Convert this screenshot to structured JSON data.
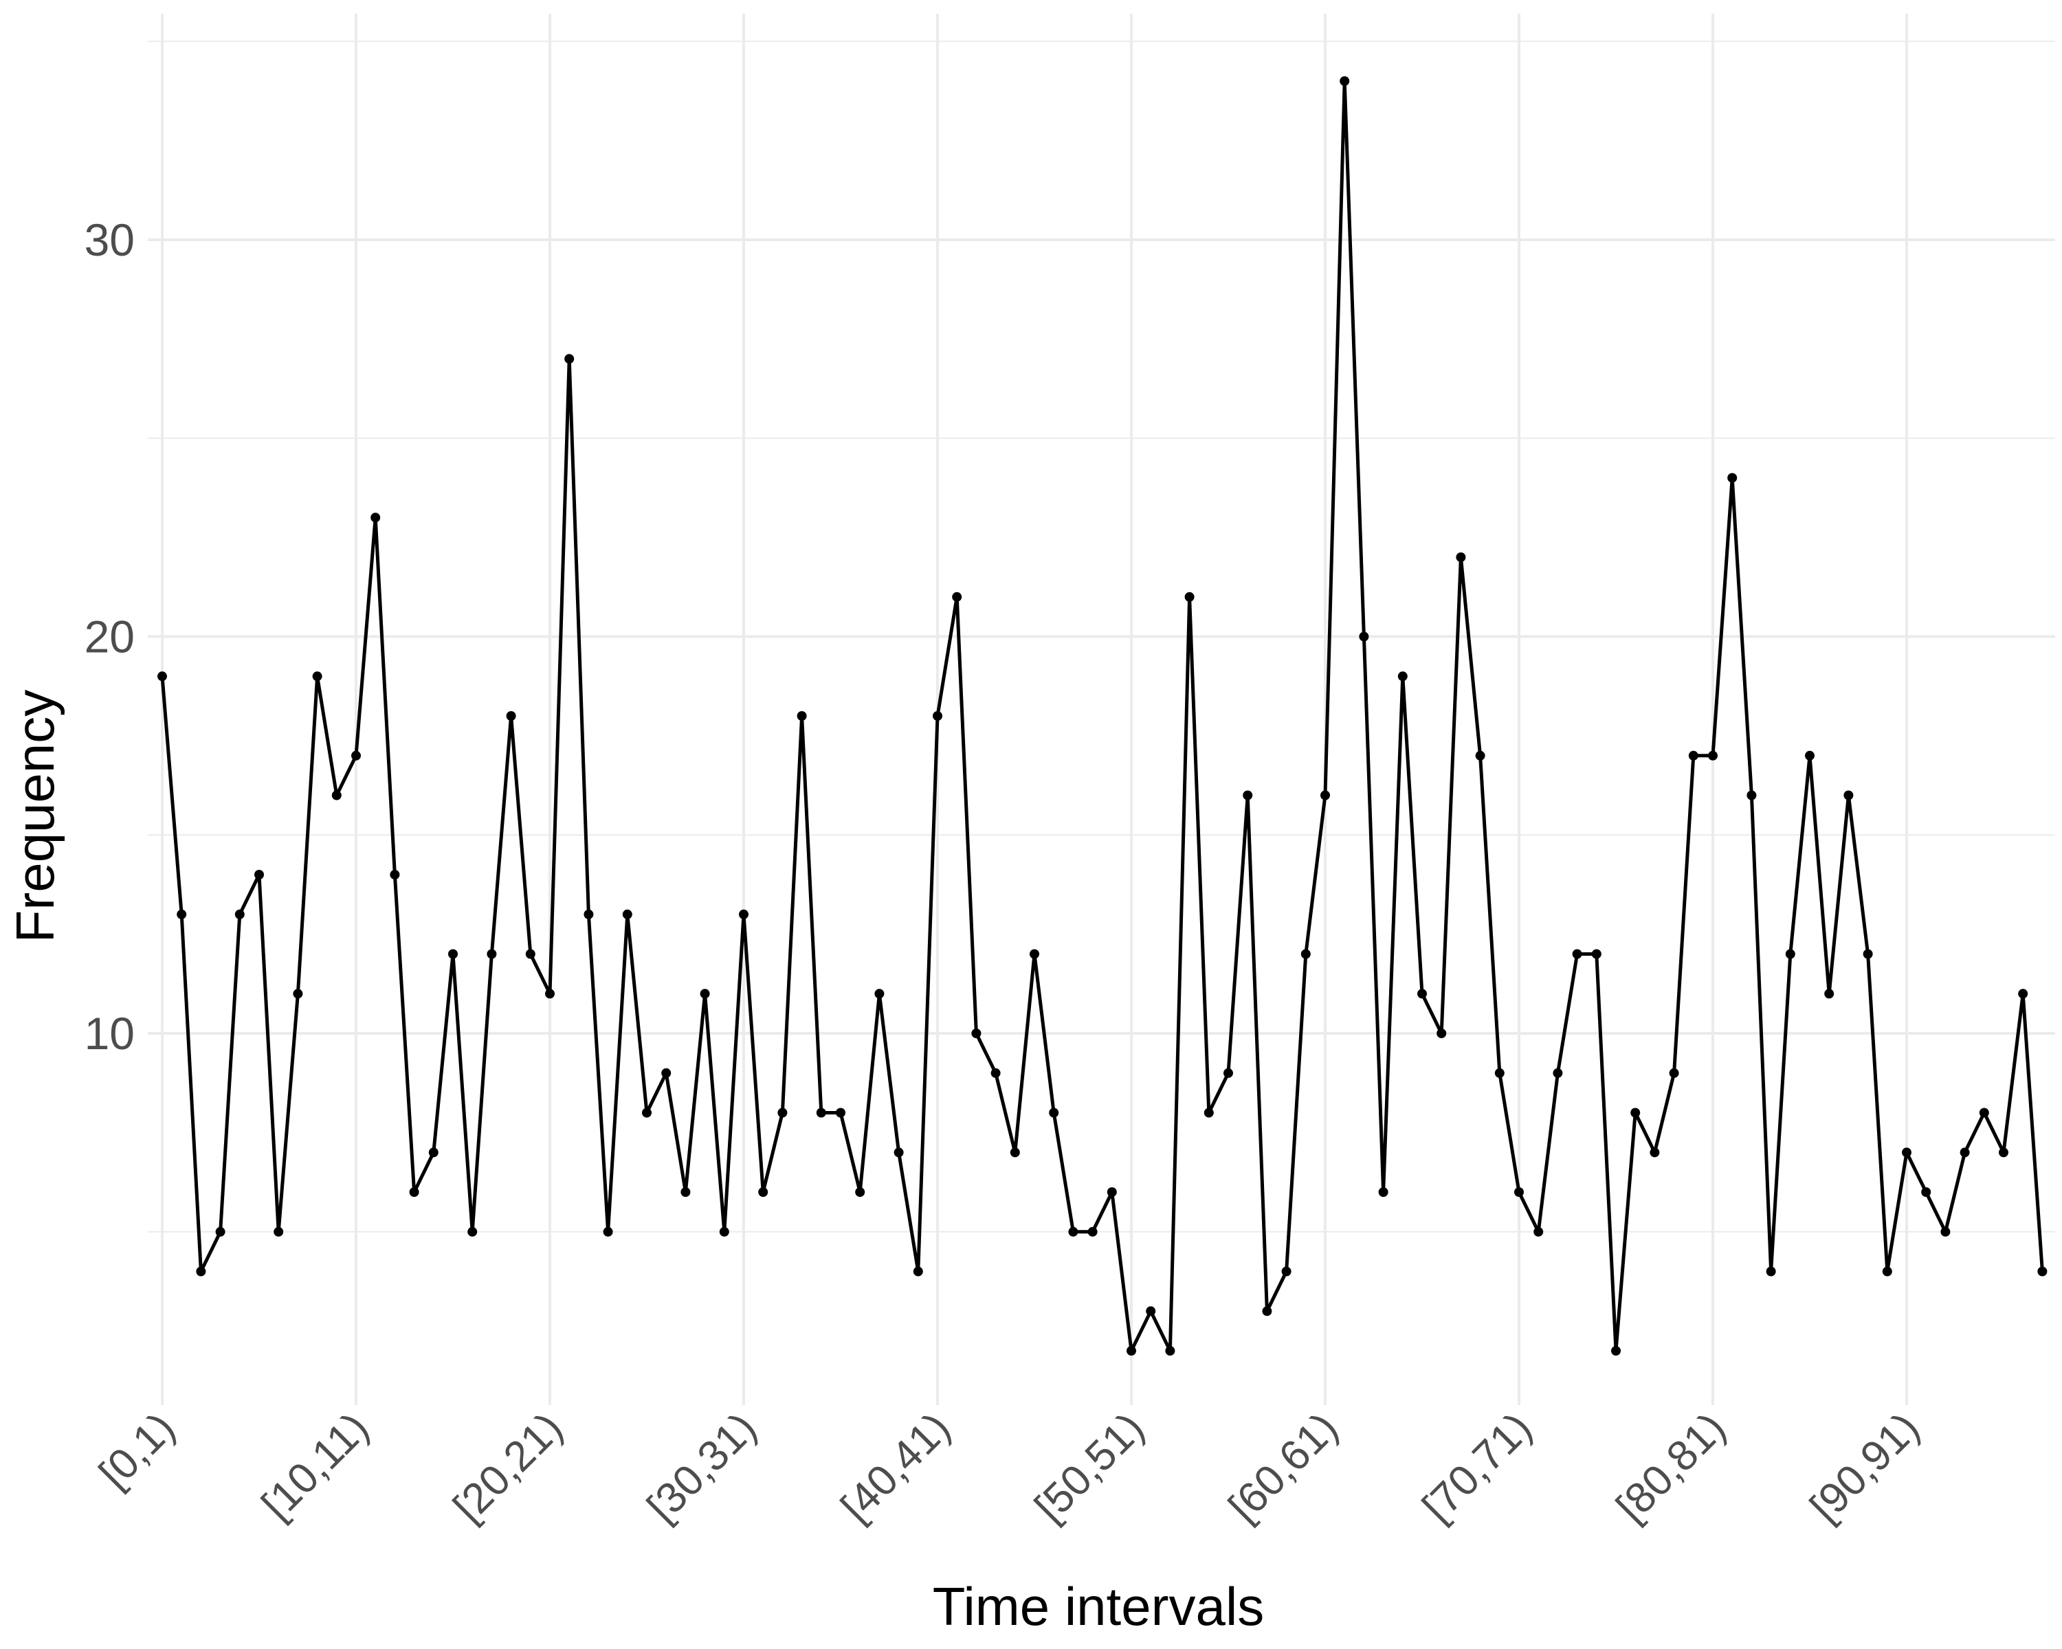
{
  "chart_data": {
    "type": "line",
    "xlabel": "Time intervals",
    "ylabel": "Frequency",
    "y_ticks": [
      10,
      20,
      30
    ],
    "ylim": [
      1,
      34
    ],
    "x_tick_labels": [
      "[0,1)",
      "[10,11)",
      "[20,21)",
      "[30,31)",
      "[40,41)",
      "[50,51)",
      "[60,61)",
      "[70,71)",
      "[80,81)",
      "[90,91)"
    ],
    "x_tick_indices": [
      0,
      10,
      20,
      30,
      40,
      50,
      60,
      70,
      80,
      90
    ],
    "grid": true,
    "series": [
      {
        "values": [
          19,
          13,
          4,
          5,
          13,
          14,
          5,
          11,
          19,
          16,
          17,
          23,
          14,
          6,
          7,
          12,
          5,
          12,
          18,
          12,
          11,
          27,
          13,
          5,
          13,
          8,
          9,
          6,
          11,
          5,
          13,
          6,
          8,
          18,
          8,
          8,
          6,
          11,
          7,
          4,
          18,
          21,
          10,
          9,
          7,
          12,
          8,
          5,
          5,
          6,
          2,
          3,
          2,
          21,
          8,
          9,
          16,
          3,
          4,
          12,
          16,
          34,
          20,
          6,
          19,
          11,
          10,
          22,
          17,
          9,
          6,
          5,
          9,
          12,
          12,
          2,
          8,
          7,
          9,
          17,
          17,
          24,
          16,
          4,
          12,
          17,
          11,
          16,
          12,
          4,
          7,
          6,
          5,
          7,
          8,
          7,
          11,
          4
        ]
      }
    ]
  }
}
